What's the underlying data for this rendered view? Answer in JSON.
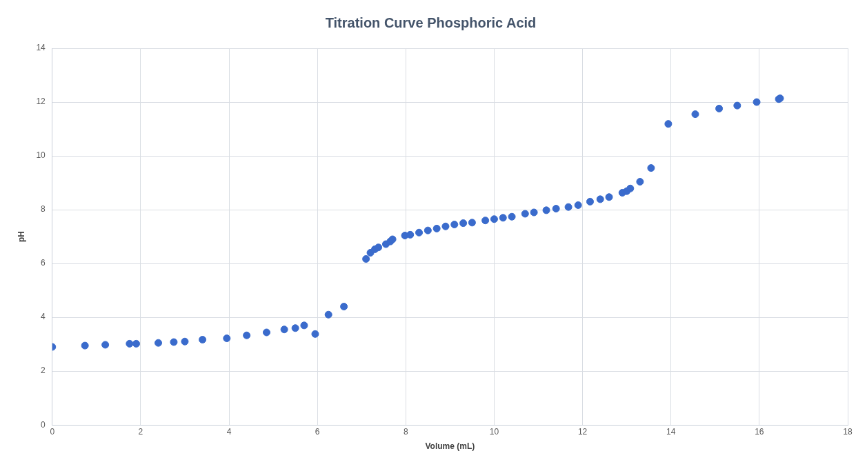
{
  "chart_data": {
    "type": "scatter",
    "title": "Titration Curve Phosphoric Acid",
    "xlabel": "Volume (mL)",
    "ylabel": "pH",
    "marker": "circle",
    "grid": true,
    "legend": false,
    "xlim": [
      0,
      18
    ],
    "xticks": [
      0,
      2,
      4,
      6,
      8,
      10,
      12,
      14,
      16,
      18
    ],
    "ylim": [
      0,
      14
    ],
    "yticks": [
      0,
      2,
      4,
      6,
      8,
      10,
      12,
      14
    ],
    "series": [
      {
        "color": "#3a6bcc",
        "x": [
          0,
          0.74,
          1.2,
          1.75,
          1.9,
          2.4,
          2.75,
          3.0,
          3.4,
          3.95,
          4.4,
          4.85,
          5.25,
          5.5,
          5.7,
          5.95,
          6.25,
          6.6,
          7.1,
          7.2,
          7.3,
          7.38,
          7.55,
          7.65,
          7.7,
          7.98,
          8.1,
          8.3,
          8.5,
          8.7,
          8.9,
          9.1,
          9.3,
          9.5,
          9.8,
          10.0,
          10.2,
          10.4,
          10.7,
          10.9,
          11.18,
          11.4,
          11.68,
          11.9,
          12.17,
          12.4,
          12.6,
          12.9,
          13.0,
          13.08,
          13.3,
          13.55,
          13.94,
          14.55,
          15.09,
          15.5,
          15.94,
          16.44,
          16.47
        ],
        "values": [
          2.9,
          2.95,
          2.98,
          3.02,
          3.02,
          3.05,
          3.08,
          3.1,
          3.17,
          3.22,
          3.33,
          3.44,
          3.55,
          3.6,
          3.7,
          3.38,
          4.1,
          4.4,
          6.17,
          6.4,
          6.53,
          6.6,
          6.72,
          6.82,
          6.9,
          7.04,
          7.07,
          7.15,
          7.23,
          7.3,
          7.38,
          7.45,
          7.5,
          7.52,
          7.6,
          7.65,
          7.7,
          7.74,
          7.85,
          7.9,
          7.98,
          8.04,
          8.1,
          8.17,
          8.3,
          8.39,
          8.47,
          8.63,
          8.69,
          8.79,
          9.04,
          9.55,
          11.19,
          11.55,
          11.76,
          11.87,
          12.0,
          12.11,
          12.14
        ]
      }
    ]
  }
}
